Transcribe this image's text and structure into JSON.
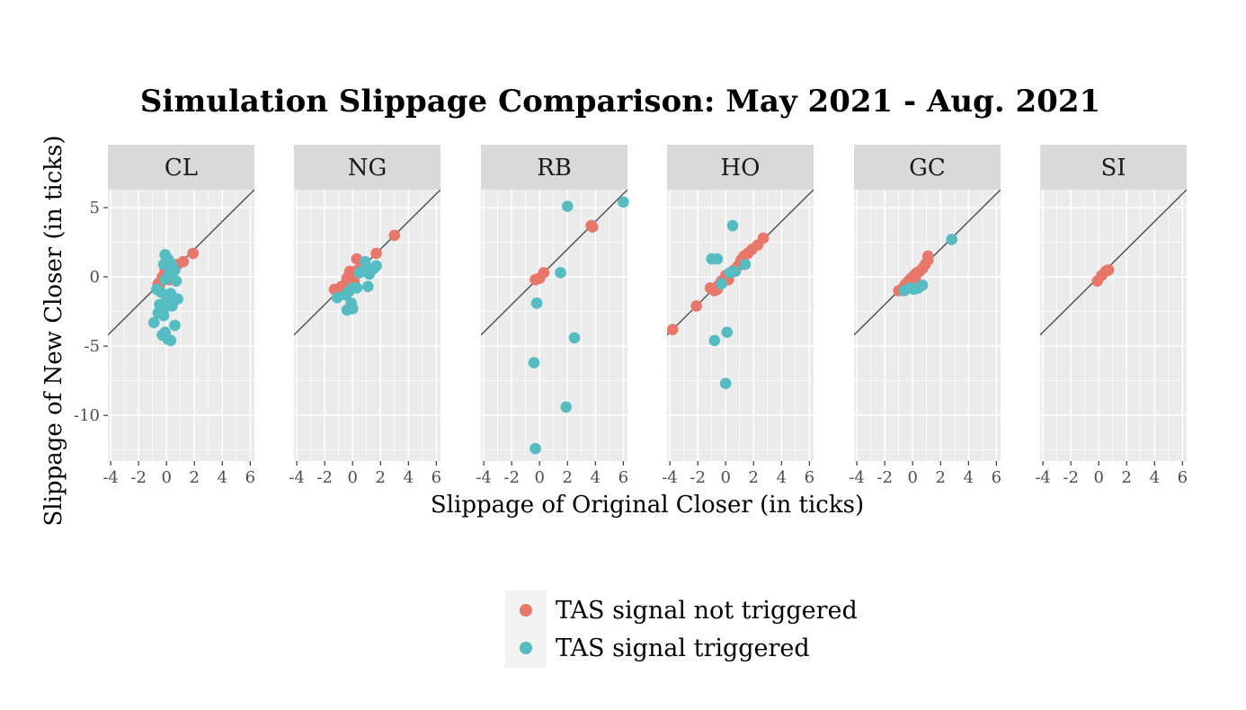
{
  "chart_data": {
    "type": "scatter",
    "title": "Simulation Slippage Comparison: May 2021 - Aug. 2021",
    "xlabel": "Slippage of Original Closer (in ticks)",
    "ylabel": "Slippage of New Closer (in ticks)",
    "xlim": [
      -4.2,
      6.3
    ],
    "ylim": [
      -13.3,
      6.3
    ],
    "x_ticks": [
      -4,
      -2,
      0,
      2,
      4,
      6
    ],
    "x_tick_labels": [
      "-4",
      "-2",
      "0",
      "2",
      "4",
      "6"
    ],
    "y_ticks": [
      5,
      0,
      -5,
      -10
    ],
    "y_tick_labels": [
      "5",
      "0",
      "-5",
      "-10"
    ],
    "reference_line": "y = x",
    "grid": true,
    "legend_position": "bottom",
    "colors": {
      "not_triggered": "#E8776A",
      "triggered": "#55BCC2",
      "panel_bg": "#EBEBEB",
      "strip_bg": "#D9D9D9",
      "legend_bg": "#F2F2F2",
      "ref_line": "#4d4d4d"
    },
    "legend": [
      {
        "key": "not_triggered",
        "label": "TAS signal not triggered"
      },
      {
        "key": "triggered",
        "label": "TAS signal triggered"
      }
    ],
    "panels": [
      {
        "name": "CL",
        "not_triggered": [
          [
            -0.6,
            -0.5
          ],
          [
            -0.4,
            -0.3
          ],
          [
            -0.2,
            -0.1
          ],
          [
            0,
            0.1
          ],
          [
            0.1,
            0.3
          ],
          [
            0.3,
            0.5
          ],
          [
            0.5,
            0.7
          ],
          [
            0.8,
            0.9
          ],
          [
            1.2,
            1.1
          ],
          [
            -0.1,
            0.5
          ],
          [
            0.1,
            0.6
          ],
          [
            0.2,
            -0.2
          ],
          [
            -0.3,
            0
          ],
          [
            0.4,
            0.2
          ],
          [
            1.9,
            1.7
          ],
          [
            -0.5,
            -0.6
          ],
          [
            0,
            0.9
          ]
        ],
        "triggered": [
          [
            -0.1,
            1.6
          ],
          [
            0.1,
            1.3
          ],
          [
            0.3,
            1
          ],
          [
            -0.2,
            0.9
          ],
          [
            0.4,
            0.8
          ],
          [
            0.6,
            0.5
          ],
          [
            0.2,
            0.2
          ],
          [
            -0.1,
            -0.2
          ],
          [
            0.7,
            -0.3
          ],
          [
            -0.7,
            -0.9
          ],
          [
            -0.4,
            -1.1
          ],
          [
            0,
            -1.4
          ],
          [
            0.3,
            -1.2
          ],
          [
            0.8,
            -1.6
          ],
          [
            -0.5,
            -2
          ],
          [
            -0.2,
            -2.3
          ],
          [
            0.1,
            -1.9
          ],
          [
            0.4,
            -2.1
          ],
          [
            -0.6,
            -2.6
          ],
          [
            -0.2,
            -2.8
          ],
          [
            -0.9,
            -3.3
          ],
          [
            0.6,
            -3.5
          ],
          [
            -0.1,
            -4
          ],
          [
            -0.3,
            -4.2
          ],
          [
            0.1,
            -4.5
          ],
          [
            0.3,
            -4.6
          ]
        ]
      },
      {
        "name": "NG",
        "not_triggered": [
          [
            -1.3,
            -0.9
          ],
          [
            -1.1,
            -1.1
          ],
          [
            -0.8,
            -0.7
          ],
          [
            -0.5,
            -0.5
          ],
          [
            -0.3,
            -0.2
          ],
          [
            0,
            0.1
          ],
          [
            0.2,
            0.4
          ],
          [
            0.4,
            0.5
          ],
          [
            0.6,
            0.6
          ],
          [
            -0.2,
            0.4
          ],
          [
            0.1,
            -0.3
          ],
          [
            -0.6,
            -0.9
          ],
          [
            0.3,
            1.3
          ],
          [
            1.7,
            1.7
          ],
          [
            3,
            3
          ],
          [
            -0.4,
            -0.1
          ]
        ],
        "triggered": [
          [
            -1.1,
            -1.5
          ],
          [
            -0.5,
            -1.3
          ],
          [
            -0.3,
            -1.1
          ],
          [
            0,
            -0.8
          ],
          [
            0.3,
            -0.8
          ],
          [
            0.7,
            0.4
          ],
          [
            1,
            0.5
          ],
          [
            1.2,
            0.2
          ],
          [
            1.5,
            0.6
          ],
          [
            1.7,
            0.8
          ],
          [
            0.9,
            1.1
          ],
          [
            0.5,
            0.3
          ],
          [
            1.1,
            -0.7
          ],
          [
            -0.1,
            -1.9
          ],
          [
            -0.4,
            -2.4
          ],
          [
            0,
            -2.3
          ]
        ]
      },
      {
        "name": "RB",
        "not_triggered": [
          [
            -0.3,
            -0.2
          ],
          [
            0,
            -0.1
          ],
          [
            0.3,
            0.3
          ],
          [
            3.7,
            3.7
          ],
          [
            3.8,
            3.6
          ]
        ],
        "triggered": [
          [
            2,
            5.1
          ],
          [
            6,
            5.4
          ],
          [
            1.5,
            0.3
          ],
          [
            -0.2,
            -1.9
          ],
          [
            2.5,
            -4.4
          ],
          [
            -0.4,
            -6.2
          ],
          [
            1.9,
            -9.4
          ],
          [
            -0.3,
            -12.4
          ]
        ]
      },
      {
        "name": "HO",
        "not_triggered": [
          [
            -3.8,
            -3.8
          ],
          [
            -2.1,
            -2.1
          ],
          [
            -1.1,
            -0.8
          ],
          [
            -0.8,
            -1
          ],
          [
            -0.5,
            -0.6
          ],
          [
            -0.3,
            -0.3
          ],
          [
            0,
            0.1
          ],
          [
            0.3,
            0.2
          ],
          [
            0.6,
            0.5
          ],
          [
            0.9,
            0.8
          ],
          [
            1.1,
            1.2
          ],
          [
            1.3,
            1.5
          ],
          [
            1.6,
            1.7
          ],
          [
            1.9,
            2
          ],
          [
            2.3,
            2.3
          ],
          [
            2.7,
            2.8
          ],
          [
            -0.6,
            -0.9
          ],
          [
            0.2,
            -0.2
          ]
        ],
        "triggered": [
          [
            0.5,
            3.7
          ],
          [
            -1,
            1.3
          ],
          [
            -0.6,
            1.3
          ],
          [
            1.4,
            0.9
          ],
          [
            0.7,
            0.4
          ],
          [
            0.3,
            0.3
          ],
          [
            -0.3,
            -0.5
          ],
          [
            0.1,
            -4
          ],
          [
            -0.8,
            -4.6
          ],
          [
            0,
            -7.7
          ]
        ]
      },
      {
        "name": "GC",
        "not_triggered": [
          [
            -1,
            -1
          ],
          [
            -0.7,
            -0.8
          ],
          [
            -0.5,
            -0.5
          ],
          [
            -0.3,
            -0.3
          ],
          [
            -0.1,
            -0.1
          ],
          [
            0.1,
            0.1
          ],
          [
            0.3,
            0.3
          ],
          [
            0.5,
            0.4
          ],
          [
            0.7,
            0.6
          ],
          [
            0.9,
            0.9
          ],
          [
            1.1,
            1.2
          ],
          [
            1.1,
            1.5
          ],
          [
            -0.4,
            -0.6
          ],
          [
            0.2,
            -0.1
          ]
        ],
        "triggered": [
          [
            2.8,
            2.7
          ],
          [
            -0.6,
            -1
          ],
          [
            -0.2,
            -0.8
          ],
          [
            0.1,
            -0.9
          ],
          [
            0.4,
            -0.8
          ],
          [
            0.7,
            -0.6
          ]
        ]
      },
      {
        "name": "SI",
        "not_triggered": [
          [
            -0.1,
            -0.3
          ],
          [
            0.2,
            0.1
          ],
          [
            0.5,
            0.4
          ],
          [
            0.7,
            0.5
          ]
        ],
        "triggered": []
      }
    ]
  }
}
